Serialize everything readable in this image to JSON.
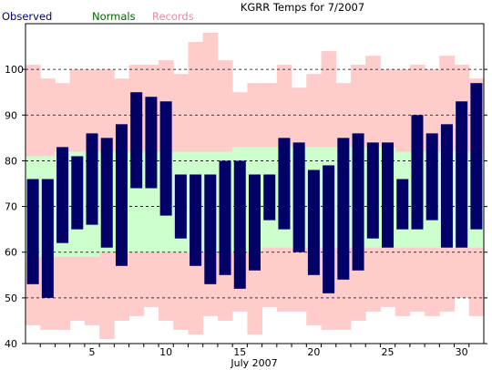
{
  "chart_data": {
    "type": "bar",
    "title": "KGRR Temps for 7/2007",
    "xlabel": "July 2007",
    "ylabel": "",
    "ylim": [
      40,
      110
    ],
    "xlim": [
      0.5,
      31.5
    ],
    "grid": true,
    "legend_placement": "top-left",
    "x_ticks": [
      "5",
      "10",
      "15",
      "20",
      "25",
      "30"
    ],
    "y_ticks": [
      "40",
      "50",
      "60",
      "70",
      "80",
      "90",
      "100"
    ],
    "x": [
      1,
      2,
      3,
      4,
      5,
      6,
      7,
      8,
      9,
      10,
      11,
      12,
      13,
      14,
      15,
      16,
      17,
      18,
      19,
      20,
      21,
      22,
      23,
      24,
      25,
      26,
      27,
      28,
      29,
      30,
      31
    ],
    "series": [
      {
        "name": "Records",
        "color": "#ffcccc",
        "low": [
          44,
          43,
          43,
          45,
          44,
          41,
          45,
          46,
          48,
          45,
          43,
          42,
          46,
          45,
          47,
          42,
          48,
          47,
          47,
          44,
          43,
          43,
          45,
          47,
          48,
          46,
          47,
          46,
          47,
          50,
          46
        ],
        "high": [
          101,
          98,
          97,
          100,
          100,
          100,
          98,
          101,
          101,
          102,
          99,
          106,
          108,
          102,
          95,
          97,
          97,
          101,
          96,
          99,
          104,
          97,
          101,
          103,
          100,
          100,
          101,
          100,
          103,
          101,
          98
        ]
      },
      {
        "name": "Normals",
        "color": "#ccffcc",
        "low": [
          59,
          59,
          59,
          59,
          59,
          60,
          60,
          60,
          60,
          60,
          60,
          60,
          60,
          60,
          60,
          60,
          61,
          61,
          61,
          61,
          61,
          61,
          61,
          61,
          61,
          61,
          61,
          61,
          61,
          61,
          61
        ],
        "high": [
          81,
          81,
          82,
          82,
          82,
          82,
          82,
          82,
          82,
          82,
          82,
          82,
          82,
          82,
          83,
          83,
          83,
          83,
          83,
          83,
          83,
          83,
          83,
          83,
          83,
          82,
          82,
          82,
          82,
          82,
          82
        ]
      },
      {
        "name": "Observed",
        "color": "#000066",
        "low": [
          53,
          50,
          62,
          65,
          66,
          61,
          57,
          74,
          74,
          68,
          63,
          57,
          53,
          55,
          52,
          56,
          67,
          65,
          60,
          55,
          51,
          54,
          56,
          63,
          61,
          65,
          65,
          67,
          61,
          61,
          65
        ],
        "high": [
          76,
          76,
          83,
          81,
          86,
          85,
          88,
          95,
          94,
          93,
          77,
          77,
          77,
          80,
          80,
          77,
          77,
          85,
          84,
          78,
          79,
          85,
          86,
          84,
          84,
          76,
          90,
          86,
          88,
          93,
          97
        ]
      }
    ]
  }
}
